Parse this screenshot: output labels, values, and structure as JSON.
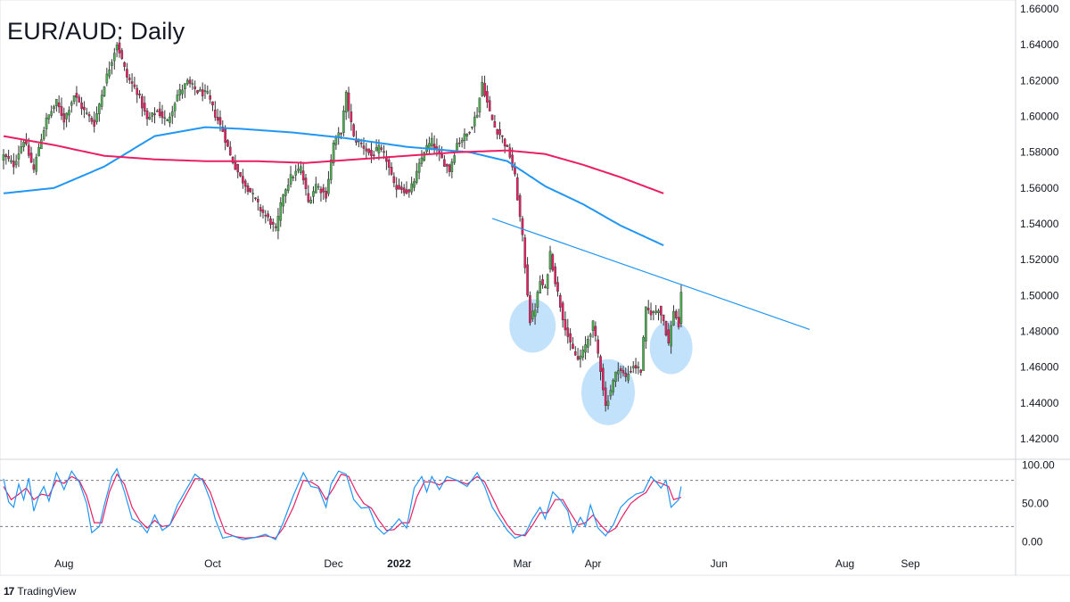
{
  "title": "EUR/AUD: Daily",
  "brand": {
    "logo": "17",
    "label": "TradingView"
  },
  "colors": {
    "bull": "#4caf50",
    "bear": "#e91e63",
    "wick": "#333333",
    "ma_fast": "#2196f3",
    "ma_slow": "#e91e63",
    "trendline": "#2196f3",
    "highlight": "#90caf9",
    "stoch_k": "#2196f3",
    "stoch_d": "#e91e63"
  },
  "chart_data": {
    "type": "candlestick",
    "timeframe": "Daily",
    "ylim": [
      1.41,
      1.665
    ],
    "y_ticks": [
      "1.42000",
      "1.44000",
      "1.46000",
      "1.48000",
      "1.50000",
      "1.52000",
      "1.54000",
      "1.56000",
      "1.58000",
      "1.60000",
      "1.62000",
      "1.64000",
      "1.66000"
    ],
    "x_ticks": [
      {
        "label": "Aug",
        "t": 24
      },
      {
        "label": "Oct",
        "t": 83
      },
      {
        "label": "Dec",
        "t": 131
      },
      {
        "label": "2022",
        "t": 157
      },
      {
        "label": "Mar",
        "t": 206
      },
      {
        "label": "Apr",
        "t": 234
      },
      {
        "label": "Jun",
        "t": 284
      },
      {
        "label": "Aug",
        "t": 334
      },
      {
        "label": "Sep",
        "t": 360
      }
    ],
    "price_anchors": [
      [
        0,
        1.578
      ],
      [
        4,
        1.573
      ],
      [
        8,
        1.587
      ],
      [
        12,
        1.57
      ],
      [
        14,
        1.583
      ],
      [
        17,
        1.598
      ],
      [
        21,
        1.608
      ],
      [
        24,
        1.598
      ],
      [
        28,
        1.612
      ],
      [
        32,
        1.603
      ],
      [
        36,
        1.596
      ],
      [
        40,
        1.618
      ],
      [
        45,
        1.641
      ],
      [
        49,
        1.622
      ],
      [
        53,
        1.614
      ],
      [
        57,
        1.598
      ],
      [
        61,
        1.603
      ],
      [
        65,
        1.597
      ],
      [
        69,
        1.612
      ],
      [
        73,
        1.619
      ],
      [
        77,
        1.614
      ],
      [
        81,
        1.612
      ],
      [
        84,
        1.601
      ],
      [
        87,
        1.592
      ],
      [
        90,
        1.578
      ],
      [
        94,
        1.566
      ],
      [
        98,
        1.558
      ],
      [
        102,
        1.548
      ],
      [
        106,
        1.541
      ],
      [
        108,
        1.536
      ],
      [
        111,
        1.557
      ],
      [
        114,
        1.566
      ],
      [
        118,
        1.571
      ],
      [
        121,
        1.552
      ],
      [
        124,
        1.562
      ],
      [
        128,
        1.556
      ],
      [
        131,
        1.585
      ],
      [
        134,
        1.592
      ],
      [
        136,
        1.612
      ],
      [
        139,
        1.588
      ],
      [
        143,
        1.583
      ],
      [
        146,
        1.578
      ],
      [
        149,
        1.582
      ],
      [
        152,
        1.576
      ],
      [
        155,
        1.561
      ],
      [
        158,
        1.56
      ],
      [
        161,
        1.557
      ],
      [
        164,
        1.568
      ],
      [
        167,
        1.581
      ],
      [
        170,
        1.586
      ],
      [
        173,
        1.578
      ],
      [
        177,
        1.57
      ],
      [
        180,
        1.585
      ],
      [
        184,
        1.59
      ],
      [
        188,
        1.602
      ],
      [
        190,
        1.619
      ],
      [
        193,
        1.602
      ],
      [
        195,
        1.594
      ],
      [
        198,
        1.588
      ],
      [
        201,
        1.578
      ],
      [
        203,
        1.566
      ],
      [
        206,
        1.532
      ],
      [
        209,
        1.486
      ],
      [
        211,
        1.493
      ],
      [
        213,
        1.508
      ],
      [
        215,
        1.503
      ],
      [
        217,
        1.524
      ],
      [
        219,
        1.508
      ],
      [
        222,
        1.488
      ],
      [
        225,
        1.472
      ],
      [
        228,
        1.464
      ],
      [
        230,
        1.468
      ],
      [
        232,
        1.476
      ],
      [
        234,
        1.484
      ],
      [
        237,
        1.459
      ],
      [
        239,
        1.438
      ],
      [
        242,
        1.452
      ],
      [
        244,
        1.46
      ],
      [
        247,
        1.454
      ],
      [
        250,
        1.461
      ],
      [
        253,
        1.458
      ],
      [
        255,
        1.492
      ],
      [
        258,
        1.49
      ],
      [
        260,
        1.493
      ],
      [
        262,
        1.486
      ],
      [
        264,
        1.473
      ],
      [
        266,
        1.492
      ],
      [
        268,
        1.483
      ],
      [
        269,
        1.5
      ]
    ],
    "hist_len": 270,
    "ma_fast_anchors": [
      [
        0,
        1.557
      ],
      [
        20,
        1.56
      ],
      [
        40,
        1.572
      ],
      [
        60,
        1.589
      ],
      [
        80,
        1.594
      ],
      [
        95,
        1.593
      ],
      [
        115,
        1.591
      ],
      [
        135,
        1.588
      ],
      [
        160,
        1.583
      ],
      [
        185,
        1.58
      ],
      [
        200,
        1.575
      ],
      [
        215,
        1.561
      ],
      [
        230,
        1.551
      ],
      [
        245,
        1.539
      ],
      [
        262,
        1.528
      ]
    ],
    "ma_slow_anchors": [
      [
        0,
        1.589
      ],
      [
        20,
        1.584
      ],
      [
        40,
        1.578
      ],
      [
        60,
        1.576
      ],
      [
        80,
        1.575
      ],
      [
        100,
        1.575
      ],
      [
        120,
        1.574
      ],
      [
        140,
        1.576
      ],
      [
        160,
        1.578
      ],
      [
        180,
        1.58
      ],
      [
        200,
        1.581
      ],
      [
        215,
        1.579
      ],
      [
        230,
        1.573
      ],
      [
        245,
        1.566
      ],
      [
        262,
        1.557
      ]
    ],
    "trendline": {
      "start": [
        194,
        1.543
      ],
      "end": [
        320,
        1.481
      ]
    },
    "highlights": [
      {
        "t": 210,
        "price": 1.483,
        "rx": 26,
        "ry": 30
      },
      {
        "t": 240,
        "price": 1.446,
        "rx": 30,
        "ry": 37
      },
      {
        "t": 265,
        "price": 1.471,
        "rx": 24,
        "ry": 30
      }
    ],
    "oscillator": {
      "type": "stochastic",
      "ylim": [
        -5,
        105
      ],
      "y_ticks": [
        "0.00",
        "50.00",
        "100.00"
      ],
      "levels": [
        80,
        20
      ],
      "k_anchors": [
        [
          0,
          82
        ],
        [
          2,
          52
        ],
        [
          4,
          45
        ],
        [
          6,
          75
        ],
        [
          8,
          55
        ],
        [
          10,
          83
        ],
        [
          12,
          40
        ],
        [
          14,
          60
        ],
        [
          16,
          72
        ],
        [
          18,
          53
        ],
        [
          21,
          90
        ],
        [
          24,
          68
        ],
        [
          27,
          92
        ],
        [
          30,
          78
        ],
        [
          33,
          50
        ],
        [
          35,
          12
        ],
        [
          38,
          20
        ],
        [
          40,
          48
        ],
        [
          43,
          85
        ],
        [
          45,
          95
        ],
        [
          48,
          65
        ],
        [
          51,
          30
        ],
        [
          54,
          25
        ],
        [
          57,
          12
        ],
        [
          60,
          35
        ],
        [
          63,
          15
        ],
        [
          66,
          22
        ],
        [
          69,
          48
        ],
        [
          72,
          65
        ],
        [
          76,
          88
        ],
        [
          79,
          80
        ],
        [
          82,
          55
        ],
        [
          84,
          30
        ],
        [
          87,
          5
        ],
        [
          91,
          8
        ],
        [
          95,
          3
        ],
        [
          100,
          6
        ],
        [
          104,
          10
        ],
        [
          108,
          3
        ],
        [
          111,
          25
        ],
        [
          115,
          60
        ],
        [
          119,
          90
        ],
        [
          122,
          72
        ],
        [
          125,
          70
        ],
        [
          128,
          45
        ],
        [
          130,
          75
        ],
        [
          133,
          92
        ],
        [
          136,
          88
        ],
        [
          139,
          55
        ],
        [
          142,
          44
        ],
        [
          145,
          45
        ],
        [
          148,
          20
        ],
        [
          151,
          10
        ],
        [
          154,
          18
        ],
        [
          157,
          30
        ],
        [
          160,
          18
        ],
        [
          163,
          70
        ],
        [
          166,
          85
        ],
        [
          168,
          65
        ],
        [
          170,
          85
        ],
        [
          173,
          68
        ],
        [
          176,
          85
        ],
        [
          180,
          80
        ],
        [
          184,
          72
        ],
        [
          188,
          90
        ],
        [
          191,
          72
        ],
        [
          194,
          45
        ],
        [
          197,
          30
        ],
        [
          200,
          15
        ],
        [
          203,
          5
        ],
        [
          207,
          10
        ],
        [
          210,
          30
        ],
        [
          213,
          45
        ],
        [
          215,
          30
        ],
        [
          218,
          65
        ],
        [
          221,
          55
        ],
        [
          224,
          40
        ],
        [
          226,
          12
        ],
        [
          229,
          32
        ],
        [
          231,
          20
        ],
        [
          233,
          48
        ],
        [
          236,
          18
        ],
        [
          239,
          8
        ],
        [
          242,
          22
        ],
        [
          245,
          45
        ],
        [
          248,
          55
        ],
        [
          251,
          62
        ],
        [
          254,
          65
        ],
        [
          257,
          85
        ],
        [
          259,
          78
        ],
        [
          261,
          70
        ],
        [
          263,
          80
        ],
        [
          265,
          45
        ],
        [
          268,
          55
        ],
        [
          269,
          72
        ]
      ],
      "d_anchors": [
        [
          0,
          72
        ],
        [
          3,
          55
        ],
        [
          6,
          62
        ],
        [
          9,
          70
        ],
        [
          12,
          55
        ],
        [
          15,
          62
        ],
        [
          18,
          60
        ],
        [
          21,
          80
        ],
        [
          24,
          76
        ],
        [
          27,
          85
        ],
        [
          30,
          80
        ],
        [
          33,
          60
        ],
        [
          36,
          25
        ],
        [
          39,
          25
        ],
        [
          42,
          65
        ],
        [
          45,
          88
        ],
        [
          48,
          75
        ],
        [
          51,
          45
        ],
        [
          54,
          28
        ],
        [
          57,
          18
        ],
        [
          60,
          28
        ],
        [
          63,
          20
        ],
        [
          66,
          22
        ],
        [
          69,
          40
        ],
        [
          72,
          58
        ],
        [
          76,
          82
        ],
        [
          79,
          82
        ],
        [
          82,
          65
        ],
        [
          85,
          38
        ],
        [
          88,
          12
        ],
        [
          92,
          7
        ],
        [
          96,
          5
        ],
        [
          100,
          6
        ],
        [
          104,
          8
        ],
        [
          108,
          5
        ],
        [
          111,
          18
        ],
        [
          115,
          45
        ],
        [
          119,
          80
        ],
        [
          122,
          78
        ],
        [
          125,
          72
        ],
        [
          128,
          55
        ],
        [
          131,
          70
        ],
        [
          134,
          88
        ],
        [
          137,
          85
        ],
        [
          140,
          65
        ],
        [
          143,
          50
        ],
        [
          146,
          44
        ],
        [
          149,
          28
        ],
        [
          152,
          15
        ],
        [
          155,
          16
        ],
        [
          158,
          25
        ],
        [
          161,
          25
        ],
        [
          164,
          58
        ],
        [
          167,
          78
        ],
        [
          170,
          78
        ],
        [
          173,
          74
        ],
        [
          176,
          80
        ],
        [
          180,
          80
        ],
        [
          184,
          75
        ],
        [
          188,
          85
        ],
        [
          191,
          78
        ],
        [
          194,
          58
        ],
        [
          197,
          38
        ],
        [
          200,
          22
        ],
        [
          203,
          10
        ],
        [
          207,
          8
        ],
        [
          210,
          22
        ],
        [
          213,
          38
        ],
        [
          216,
          38
        ],
        [
          219,
          55
        ],
        [
          222,
          55
        ],
        [
          225,
          38
        ],
        [
          228,
          22
        ],
        [
          231,
          25
        ],
        [
          234,
          35
        ],
        [
          237,
          22
        ],
        [
          240,
          12
        ],
        [
          243,
          18
        ],
        [
          246,
          35
        ],
        [
          249,
          50
        ],
        [
          252,
          58
        ],
        [
          255,
          64
        ],
        [
          258,
          80
        ],
        [
          261,
          76
        ],
        [
          264,
          72
        ],
        [
          266,
          55
        ],
        [
          269,
          58
        ]
      ]
    }
  }
}
